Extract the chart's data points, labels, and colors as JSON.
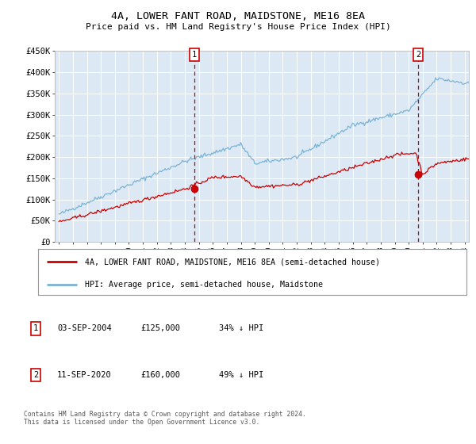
{
  "title": "4A, LOWER FANT ROAD, MAIDSTONE, ME16 8EA",
  "subtitle": "Price paid vs. HM Land Registry's House Price Index (HPI)",
  "footer": "Contains HM Land Registry data © Crown copyright and database right 2024.\nThis data is licensed under the Open Government Licence v3.0.",
  "legend_line1": "4A, LOWER FANT ROAD, MAIDSTONE, ME16 8EA (semi-detached house)",
  "legend_line2": "HPI: Average price, semi-detached house, Maidstone",
  "annotation1_label": "1",
  "annotation1_date": "03-SEP-2004",
  "annotation1_price": "£125,000",
  "annotation1_hpi": "34% ↓ HPI",
  "annotation2_label": "2",
  "annotation2_date": "11-SEP-2020",
  "annotation2_price": "£160,000",
  "annotation2_hpi": "49% ↓ HPI",
  "hpi_color": "#7ab3d4",
  "price_color": "#cc0000",
  "plot_bg_color": "#dce9f5",
  "vline_color": "#cc0000",
  "ylim": [
    0,
    450000
  ],
  "yticks": [
    0,
    50000,
    100000,
    150000,
    200000,
    250000,
    300000,
    350000,
    400000,
    450000
  ],
  "year_start": 1995,
  "year_end": 2024,
  "sale1_year": 2004.67,
  "sale1_price": 125000,
  "sale2_year": 2020.69,
  "sale2_price": 160000
}
